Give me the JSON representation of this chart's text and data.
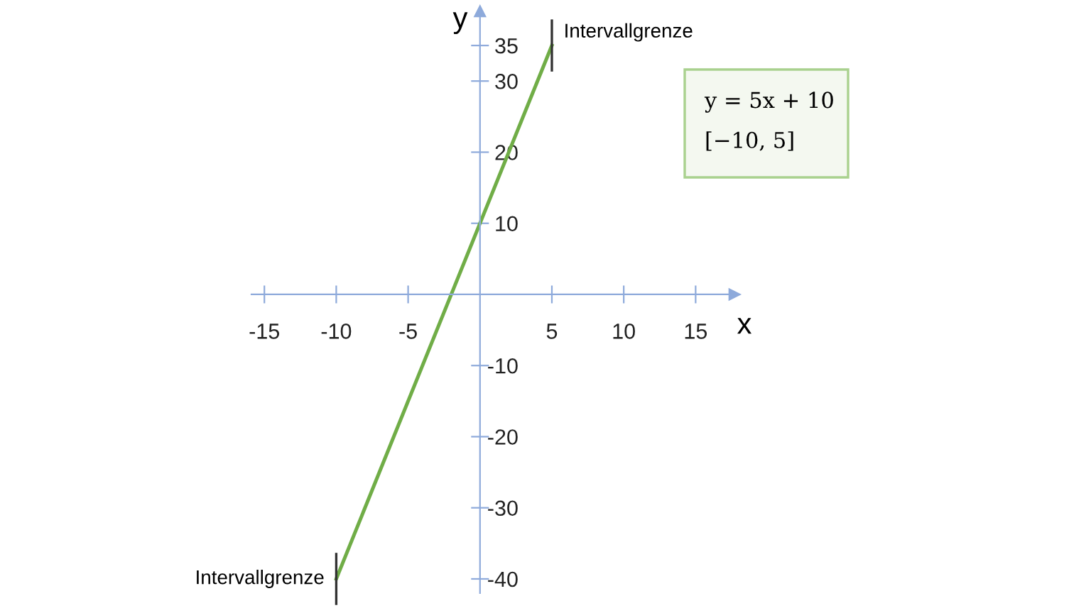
{
  "chart_data": {
    "type": "line",
    "xlabel": "x",
    "ylabel": "y",
    "x": [
      -10,
      5
    ],
    "series": [
      {
        "color": "#70ad47",
        "values": [
          -40,
          35
        ]
      }
    ],
    "xlim": [
      -15.9,
      17.7
    ],
    "ylim": [
      -42,
      39.8
    ],
    "xticks": [
      -15,
      -10,
      -5,
      5,
      10,
      15
    ],
    "yticks": [
      -40,
      -30,
      -20,
      -10,
      10,
      20,
      30,
      35
    ],
    "grid": false,
    "marker": "none",
    "line_style": "solid",
    "annotations": [
      {
        "text": "Intervallgrenze",
        "x": 5,
        "y": 35
      },
      {
        "text": "Intervallgrenze",
        "x": -10,
        "y": -40
      },
      "y = 5x + 10",
      "[−10, 5]"
    ]
  }
}
